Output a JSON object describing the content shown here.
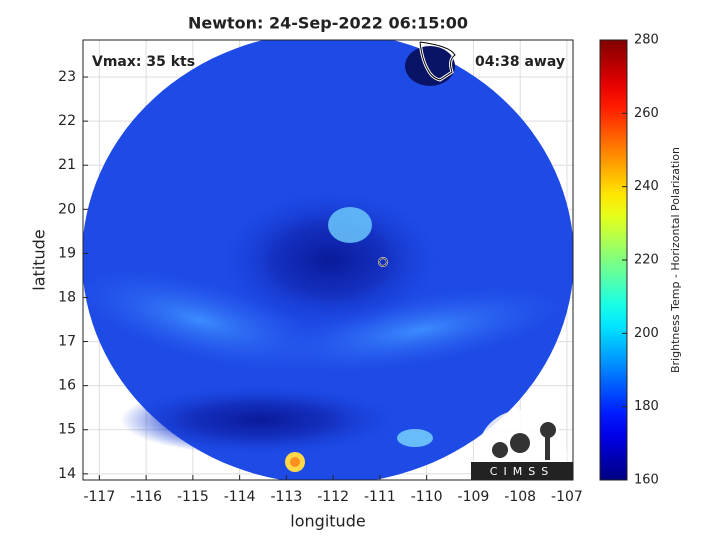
{
  "chart_data": {
    "type": "satellite-map",
    "title": "Newton: 24-Sep-2022 06:15:00",
    "annotations": [
      "Vmax: 35 kts",
      "04:38 away"
    ],
    "xlabel": "longitude",
    "ylabel": "latitude",
    "xlim": [
      -117.35,
      -106.87
    ],
    "xticks": [
      -117,
      -116,
      -115,
      -114,
      -113,
      -112,
      -111,
      -110,
      -109,
      -108,
      -107
    ],
    "ylim": [
      13.86,
      23.84
    ],
    "yticks": [
      14,
      15,
      16,
      17,
      18,
      19,
      20,
      21,
      22,
      23
    ],
    "grid": true,
    "colormap": "jet",
    "colorbar": {
      "label": "Brightness Temp - Horizontal Polarization",
      "lim": [
        160,
        280
      ],
      "ticks": [
        160,
        180,
        200,
        220,
        240,
        260,
        280
      ]
    },
    "logo": "CIMSS"
  }
}
